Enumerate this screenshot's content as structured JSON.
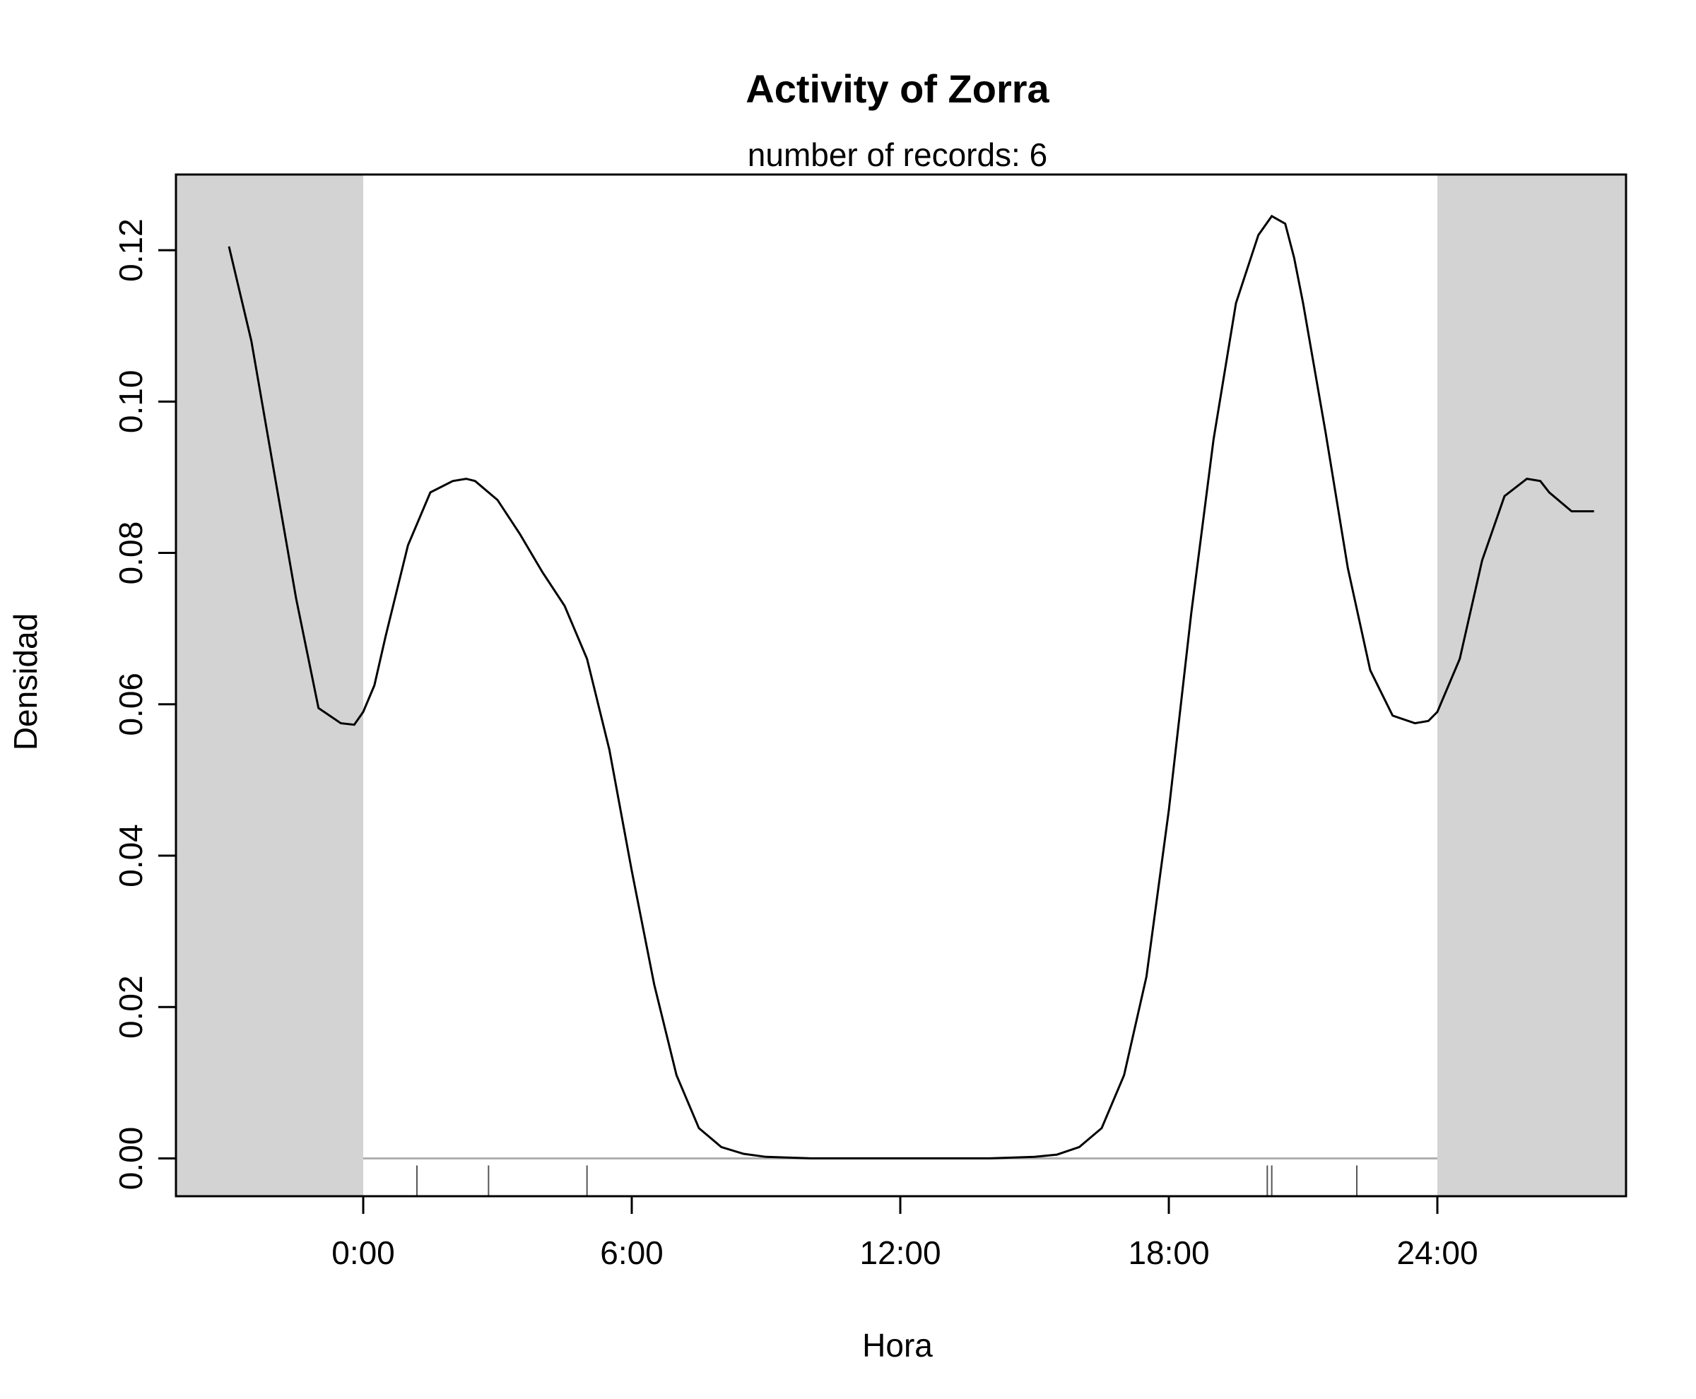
{
  "chart_data": {
    "type": "line",
    "title": "Activity of Zorra",
    "subtitle": "number of records: 6",
    "xlabel": "Hora",
    "ylabel": "Densidad",
    "xlim": [
      -6.9,
      47.0
    ],
    "ylim": [
      -0.005,
      0.13
    ],
    "x_ticks": [
      0,
      6,
      12,
      18,
      24
    ],
    "x_tick_labels": [
      "0:00",
      "6:00",
      "12:00",
      "18:00",
      "24:00"
    ],
    "y_ticks": [
      0.0,
      0.02,
      0.04,
      0.06,
      0.08,
      0.1,
      0.12
    ],
    "y_tick_labels": [
      "0.00",
      "0.02",
      "0.04",
      "0.06",
      "0.08",
      "0.10",
      "0.12"
    ],
    "shaded_regions": [
      [
        -6.9,
        0
      ],
      [
        24,
        47.0
      ]
    ],
    "shade_color": "#d3d3d3",
    "zero_line_color": "#b0b0b0",
    "line_color": "#000000",
    "records": [
      1.2,
      2.8,
      5.0,
      20.2,
      20.3,
      22.2
    ],
    "series": [
      {
        "x": [
          -3,
          -2.5,
          -2,
          -1.5,
          -1,
          -0.5,
          -0.2,
          0,
          0.25,
          0.5,
          1,
          1.5,
          2,
          2.3,
          2.5,
          3,
          3.5,
          4,
          4.5,
          5,
          5.5,
          6,
          6.5,
          7,
          7.5,
          8,
          8.5,
          9,
          10,
          11,
          12,
          13,
          14,
          15,
          15.5,
          16,
          16.5,
          17,
          17.5,
          18,
          18.5,
          19,
          19.5,
          20,
          20.3,
          20.6,
          20.8,
          21,
          21.5,
          22,
          22.5,
          23,
          23.5,
          23.8,
          24,
          24.5,
          25,
          25.5,
          26,
          26.3,
          26.5,
          27,
          27.5
        ],
        "y": [
          0.1205,
          0.108,
          0.091,
          0.074,
          0.0595,
          0.0575,
          0.0573,
          0.059,
          0.0625,
          0.069,
          0.081,
          0.088,
          0.0895,
          0.0898,
          0.0895,
          0.087,
          0.0825,
          0.0775,
          0.073,
          0.066,
          0.054,
          0.038,
          0.023,
          0.011,
          0.004,
          0.0015,
          0.0006,
          0.0002,
          0.0,
          0.0,
          0.0,
          0.0,
          0.0,
          0.0002,
          0.0005,
          0.0015,
          0.004,
          0.011,
          0.024,
          0.046,
          0.072,
          0.095,
          0.113,
          0.122,
          0.1245,
          0.1235,
          0.119,
          0.113,
          0.096,
          0.078,
          0.0645,
          0.0585,
          0.0575,
          0.0578,
          0.059,
          0.066,
          0.079,
          0.0875,
          0.0898,
          0.0895,
          0.088,
          0.0855,
          0.0855
        ]
      }
    ]
  }
}
